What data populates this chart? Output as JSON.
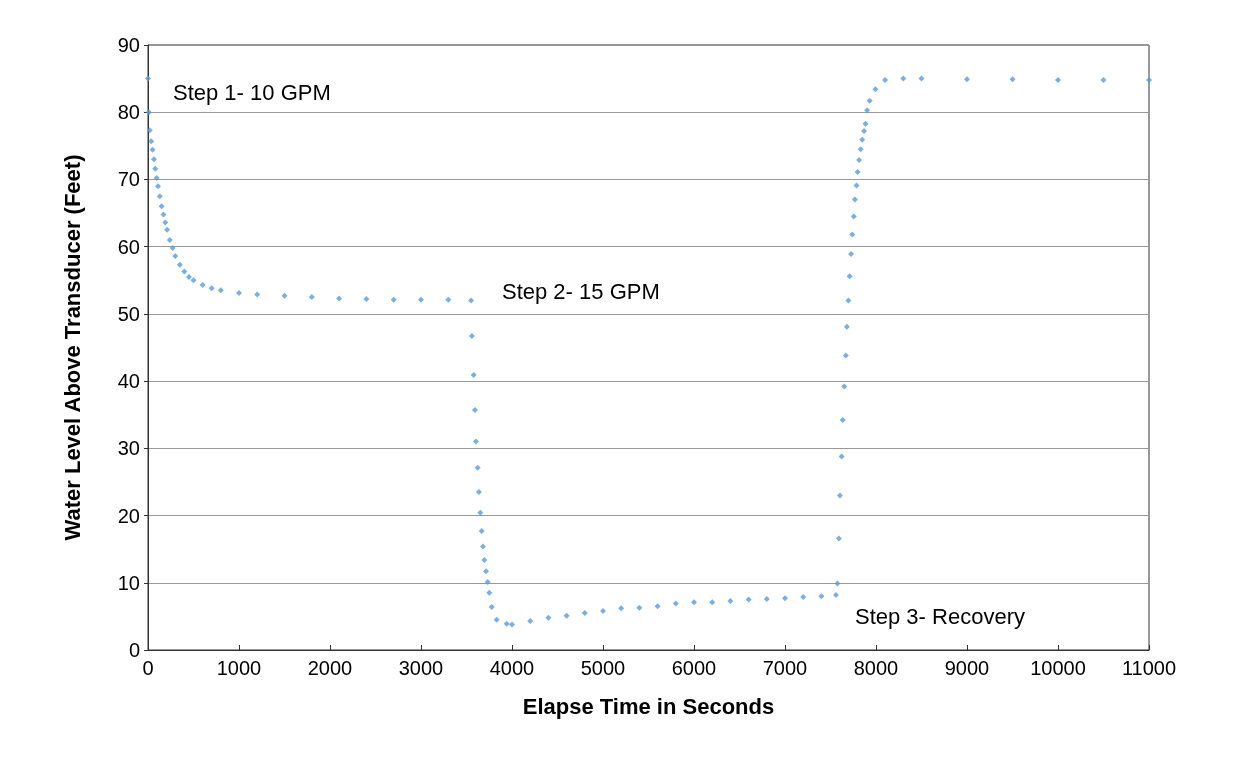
{
  "chart_data": {
    "type": "scatter",
    "xlabel": "Elapse Time in Seconds",
    "ylabel": "Water Level Above Transducer (Feet)",
    "xlim": [
      0,
      11000
    ],
    "xticks": [
      0,
      1000,
      2000,
      3000,
      4000,
      5000,
      6000,
      7000,
      8000,
      9000,
      10000,
      11000
    ],
    "ylim": [
      0,
      90
    ],
    "yticks": [
      0,
      10,
      20,
      30,
      40,
      50,
      60,
      70,
      80,
      90
    ],
    "grid": "y",
    "marker": "diamond",
    "series": [
      {
        "color": "#5b9bd5",
        "x": [
          0,
          10,
          20,
          35,
          50,
          65,
          80,
          95,
          110,
          130,
          150,
          170,
          190,
          210,
          240,
          270,
          300,
          350,
          400,
          450,
          500,
          600,
          700,
          800,
          1000,
          1200,
          1500,
          1800,
          2100,
          2400,
          2700,
          3000,
          3300,
          3550,
          3560,
          3579,
          3593,
          3604,
          3623,
          3637,
          3652,
          3667,
          3681,
          3696,
          3714,
          3733,
          3751,
          3777,
          3832,
          3942,
          4000,
          4200,
          4400,
          4600,
          4800,
          5000,
          5200,
          5400,
          5600,
          5800,
          6000,
          6200,
          6400,
          6600,
          6800,
          7000,
          7200,
          7400,
          7560,
          7576,
          7592,
          7604,
          7622,
          7634,
          7651,
          7668,
          7680,
          7697,
          7710,
          7726,
          7739,
          7756,
          7768,
          7786,
          7798,
          7814,
          7832,
          7848,
          7869,
          7885,
          7902,
          7931,
          7994,
          8100,
          8300,
          8500,
          9000,
          9500,
          10000,
          10500,
          11000
        ],
        "values": [
          85,
          80,
          77.3,
          75.7,
          74.4,
          73,
          71.6,
          70.2,
          69,
          67.5,
          66,
          64.8,
          63.6,
          62.5,
          61,
          59.8,
          58.6,
          57.3,
          56.3,
          55.5,
          55,
          54.3,
          53.8,
          53.5,
          53.1,
          52.9,
          52.7,
          52.5,
          52.3,
          52.2,
          52.1,
          52.1,
          52.1,
          52,
          46.7,
          40.9,
          35.7,
          31,
          27.1,
          23.5,
          20.4,
          17.7,
          15.4,
          13.4,
          11.7,
          10.1,
          8.5,
          6.4,
          4.5,
          3.9,
          3.8,
          4.3,
          4.8,
          5.1,
          5.5,
          5.8,
          6.2,
          6.3,
          6.5,
          6.9,
          7.1,
          7.1,
          7.3,
          7.5,
          7.6,
          7.7,
          7.9,
          8,
          8.2,
          9.9,
          16.6,
          23,
          28.8,
          34.2,
          39.2,
          43.8,
          48.1,
          52,
          55.6,
          58.9,
          61.8,
          64.5,
          67,
          69.1,
          71.1,
          72.9,
          74.5,
          75.9,
          77.2,
          78.3,
          80.3,
          81.7,
          83.4,
          84.8,
          85,
          85,
          84.9,
          84.9,
          84.8,
          84.8,
          84.8
        ]
      }
    ],
    "annotations": [
      "Step 1- 10 GPM",
      "Step 2- 15 GPM",
      "Step 3- Recovery"
    ]
  }
}
